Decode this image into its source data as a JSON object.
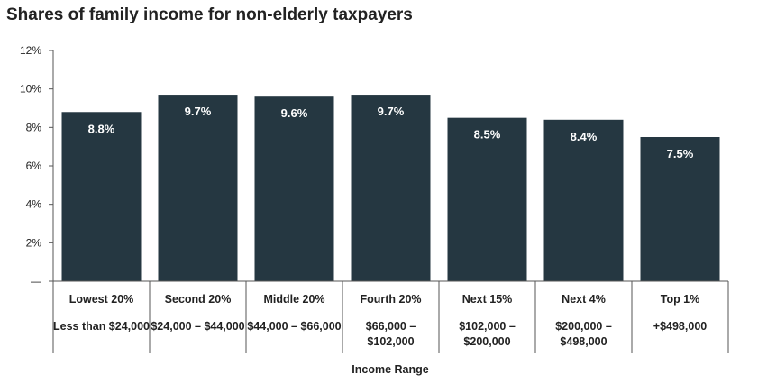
{
  "chart_data": {
    "type": "bar",
    "title": "Shares of family income for non-elderly taxpayers",
    "xlabel": "Income Range",
    "ylabel": "",
    "ylim": [
      0,
      12
    ],
    "yticks": [
      "12%",
      "10%",
      "8%",
      "6%",
      "4%",
      "2%",
      "—"
    ],
    "categories": [
      "Lowest 20%",
      "Second 20%",
      "Middle 20%",
      "Fourth 20%",
      "Next 15%",
      "Next 4%",
      "Top 1%"
    ],
    "ranges": [
      [
        "Less than $24,000"
      ],
      [
        "$24,000 – $44,000"
      ],
      [
        "$44,000 – $66,000"
      ],
      [
        "$66,000 –",
        "$102,000"
      ],
      [
        "$102,000 –",
        "$200,000"
      ],
      [
        "$200,000 –",
        "$498,000"
      ],
      [
        "+$498,000"
      ]
    ],
    "values": [
      8.8,
      9.7,
      9.6,
      9.7,
      8.5,
      8.4,
      7.5
    ],
    "value_labels": [
      "8.8%",
      "9.7%",
      "9.6%",
      "9.7%",
      "8.5%",
      "8.4%",
      "7.5%"
    ],
    "colors": {
      "bar": "#253741",
      "axis": "#555555",
      "text": "#222222",
      "value_text": "#ffffff"
    },
    "grid": false,
    "legend": "none"
  }
}
